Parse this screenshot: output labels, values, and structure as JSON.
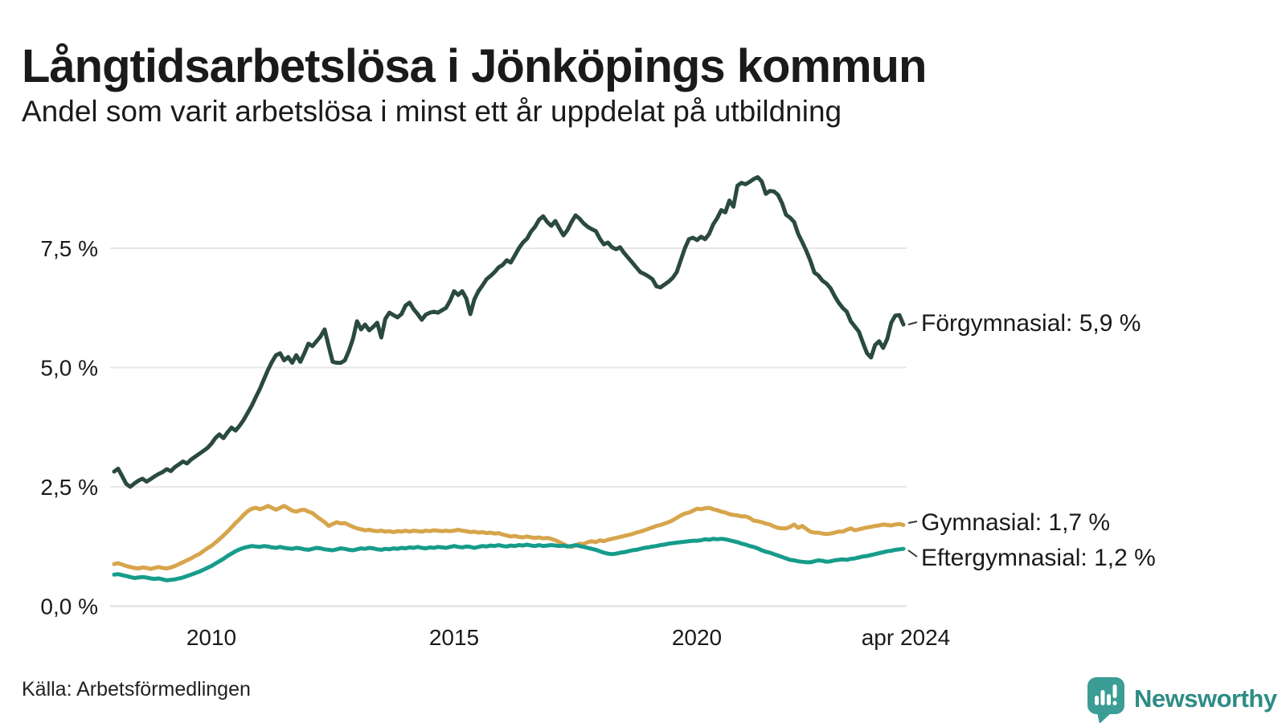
{
  "header": {
    "title": "Långtidsarbetslösa i Jönköpings kommun",
    "subtitle": "Andel som varit arbetslösa i minst ett år uppdelat på utbildning"
  },
  "footer": {
    "source": "Källa: Arbetsförmedlingen",
    "brand_name": "Newsworthy",
    "brand_color": "#3b9d95"
  },
  "chart_data": {
    "type": "line",
    "title": "Långtidsarbetslösa i Jönköpings kommun",
    "subtitle": "Andel som varit arbetslösa i minst ett år uppdelat på utbildning",
    "unit": "%",
    "frequency": "monthly",
    "x_start": "2008-01",
    "x_end": "2024-04",
    "ylim": [
      0,
      9.4
    ],
    "grid": "horizontal",
    "legend_position": "right-of-line-ends",
    "y_ticks": [
      "7,5 %",
      "5,0 %",
      "2,5 %",
      "0,0 %"
    ],
    "y_tick_values": [
      7.5,
      5.0,
      2.5,
      0.0
    ],
    "x_ticks": [
      "2010",
      "2015",
      "2020",
      "apr 2024"
    ],
    "series": [
      {
        "id": "forgymnasial",
        "name": "Förgymnasial",
        "label": "Förgymnasial: 5,9 %",
        "end_value": 5.9,
        "color": "#2a4a41",
        "values": [
          2.82,
          2.88,
          2.72,
          2.56,
          2.5,
          2.57,
          2.63,
          2.67,
          2.61,
          2.66,
          2.72,
          2.77,
          2.81,
          2.87,
          2.83,
          2.91,
          2.97,
          3.03,
          2.99,
          3.07,
          3.13,
          3.19,
          3.25,
          3.31,
          3.4,
          3.52,
          3.6,
          3.52,
          3.64,
          3.74,
          3.68,
          3.78,
          3.9,
          4.05,
          4.2,
          4.38,
          4.55,
          4.75,
          4.95,
          5.12,
          5.26,
          5.3,
          5.15,
          5.22,
          5.1,
          5.26,
          5.12,
          5.3,
          5.5,
          5.45,
          5.55,
          5.65,
          5.8,
          5.45,
          5.12,
          5.1,
          5.1,
          5.15,
          5.35,
          5.6,
          5.97,
          5.8,
          5.9,
          5.78,
          5.85,
          5.94,
          5.63,
          6.02,
          6.15,
          6.1,
          6.05,
          6.12,
          6.3,
          6.36,
          6.22,
          6.12,
          6.0,
          6.11,
          6.15,
          6.17,
          6.15,
          6.2,
          6.25,
          6.4,
          6.6,
          6.52,
          6.6,
          6.45,
          6.12,
          6.43,
          6.6,
          6.72,
          6.85,
          6.92,
          7.0,
          7.1,
          7.15,
          7.25,
          7.2,
          7.35,
          7.5,
          7.62,
          7.7,
          7.85,
          7.95,
          8.1,
          8.17,
          8.05,
          7.97,
          8.07,
          7.92,
          7.77,
          7.88,
          8.05,
          8.19,
          8.12,
          8.02,
          7.95,
          7.9,
          7.86,
          7.7,
          7.58,
          7.62,
          7.52,
          7.48,
          7.52,
          7.4,
          7.3,
          7.2,
          7.1,
          7.0,
          6.96,
          6.91,
          6.85,
          6.7,
          6.68,
          6.74,
          6.8,
          6.88,
          7.0,
          7.25,
          7.5,
          7.69,
          7.72,
          7.67,
          7.74,
          7.69,
          7.8,
          8.0,
          8.13,
          8.3,
          8.25,
          8.5,
          8.37,
          8.81,
          8.87,
          8.84,
          8.89,
          8.95,
          8.99,
          8.9,
          8.64,
          8.7,
          8.69,
          8.62,
          8.45,
          8.2,
          8.14,
          8.05,
          7.8,
          7.63,
          7.45,
          7.24,
          6.99,
          6.93,
          6.82,
          6.76,
          6.66,
          6.5,
          6.36,
          6.25,
          6.17,
          5.97,
          5.86,
          5.75,
          5.52,
          5.3,
          5.21,
          5.47,
          5.55,
          5.41,
          5.6,
          5.94,
          6.09,
          6.1,
          5.9
        ]
      },
      {
        "id": "gymnasial",
        "name": "Gymnasial",
        "label": "Gymnasial: 1,7 %",
        "end_value": 1.7,
        "color": "#d7a54c",
        "values": [
          0.88,
          0.9,
          0.87,
          0.84,
          0.82,
          0.8,
          0.79,
          0.81,
          0.8,
          0.78,
          0.8,
          0.82,
          0.8,
          0.79,
          0.81,
          0.84,
          0.88,
          0.92,
          0.96,
          1.0,
          1.05,
          1.09,
          1.15,
          1.21,
          1.26,
          1.33,
          1.4,
          1.48,
          1.56,
          1.65,
          1.74,
          1.82,
          1.91,
          1.99,
          2.04,
          2.06,
          2.03,
          2.06,
          2.1,
          2.06,
          2.02,
          2.06,
          2.1,
          2.05,
          2.0,
          1.98,
          2.01,
          2.02,
          1.98,
          1.95,
          1.88,
          1.82,
          1.76,
          1.68,
          1.72,
          1.76,
          1.73,
          1.74,
          1.7,
          1.66,
          1.63,
          1.61,
          1.59,
          1.6,
          1.58,
          1.57,
          1.58,
          1.56,
          1.57,
          1.55,
          1.57,
          1.56,
          1.58,
          1.56,
          1.58,
          1.57,
          1.56,
          1.58,
          1.57,
          1.59,
          1.58,
          1.57,
          1.58,
          1.57,
          1.58,
          1.6,
          1.58,
          1.57,
          1.55,
          1.56,
          1.54,
          1.55,
          1.53,
          1.54,
          1.52,
          1.53,
          1.5,
          1.48,
          1.46,
          1.47,
          1.45,
          1.44,
          1.46,
          1.44,
          1.43,
          1.44,
          1.42,
          1.43,
          1.41,
          1.38,
          1.34,
          1.3,
          1.26,
          1.24,
          1.27,
          1.31,
          1.3,
          1.34,
          1.36,
          1.34,
          1.38,
          1.36,
          1.39,
          1.41,
          1.43,
          1.45,
          1.47,
          1.49,
          1.51,
          1.54,
          1.56,
          1.59,
          1.62,
          1.65,
          1.68,
          1.7,
          1.73,
          1.76,
          1.8,
          1.85,
          1.9,
          1.94,
          1.96,
          2.0,
          2.04,
          2.03,
          2.05,
          2.06,
          2.03,
          2.01,
          1.98,
          1.96,
          1.93,
          1.91,
          1.9,
          1.88,
          1.88,
          1.85,
          1.79,
          1.78,
          1.76,
          1.73,
          1.71,
          1.67,
          1.64,
          1.63,
          1.63,
          1.66,
          1.71,
          1.64,
          1.68,
          1.62,
          1.56,
          1.54,
          1.54,
          1.52,
          1.51,
          1.52,
          1.54,
          1.56,
          1.56,
          1.6,
          1.63,
          1.59,
          1.61,
          1.63,
          1.65,
          1.66,
          1.68,
          1.69,
          1.71,
          1.7,
          1.69,
          1.71,
          1.72,
          1.7
        ]
      },
      {
        "id": "eftergymnasial",
        "name": "Eftergymnasial",
        "label": "Eftergymnasial: 1,2 %",
        "end_value": 1.2,
        "color": "#169c8b",
        "values": [
          0.66,
          0.67,
          0.65,
          0.63,
          0.61,
          0.59,
          0.6,
          0.61,
          0.6,
          0.58,
          0.57,
          0.58,
          0.56,
          0.54,
          0.55,
          0.56,
          0.58,
          0.6,
          0.63,
          0.66,
          0.69,
          0.72,
          0.76,
          0.8,
          0.84,
          0.89,
          0.94,
          0.99,
          1.05,
          1.1,
          1.15,
          1.19,
          1.22,
          1.24,
          1.26,
          1.25,
          1.24,
          1.26,
          1.25,
          1.23,
          1.22,
          1.24,
          1.22,
          1.21,
          1.2,
          1.22,
          1.21,
          1.19,
          1.18,
          1.2,
          1.22,
          1.21,
          1.19,
          1.18,
          1.17,
          1.19,
          1.21,
          1.2,
          1.18,
          1.17,
          1.19,
          1.21,
          1.2,
          1.22,
          1.21,
          1.19,
          1.18,
          1.2,
          1.19,
          1.21,
          1.2,
          1.22,
          1.21,
          1.23,
          1.22,
          1.24,
          1.22,
          1.21,
          1.23,
          1.22,
          1.24,
          1.23,
          1.22,
          1.24,
          1.26,
          1.24,
          1.23,
          1.25,
          1.24,
          1.22,
          1.24,
          1.26,
          1.25,
          1.27,
          1.26,
          1.28,
          1.26,
          1.25,
          1.27,
          1.26,
          1.28,
          1.27,
          1.29,
          1.27,
          1.26,
          1.28,
          1.26,
          1.27,
          1.28,
          1.27,
          1.26,
          1.27,
          1.25,
          1.26,
          1.28,
          1.26,
          1.24,
          1.22,
          1.2,
          1.18,
          1.15,
          1.12,
          1.1,
          1.09,
          1.1,
          1.12,
          1.13,
          1.15,
          1.17,
          1.18,
          1.2,
          1.22,
          1.23,
          1.25,
          1.26,
          1.28,
          1.29,
          1.31,
          1.32,
          1.33,
          1.34,
          1.35,
          1.36,
          1.37,
          1.37,
          1.38,
          1.4,
          1.39,
          1.41,
          1.4,
          1.41,
          1.4,
          1.38,
          1.36,
          1.34,
          1.31,
          1.29,
          1.26,
          1.24,
          1.21,
          1.17,
          1.14,
          1.12,
          1.09,
          1.06,
          1.03,
          1.0,
          0.97,
          0.96,
          0.94,
          0.93,
          0.92,
          0.92,
          0.94,
          0.96,
          0.95,
          0.93,
          0.94,
          0.96,
          0.97,
          0.98,
          0.97,
          0.99,
          1.0,
          1.02,
          1.04,
          1.05,
          1.07,
          1.09,
          1.11,
          1.13,
          1.15,
          1.16,
          1.18,
          1.19,
          1.2
        ]
      }
    ]
  }
}
